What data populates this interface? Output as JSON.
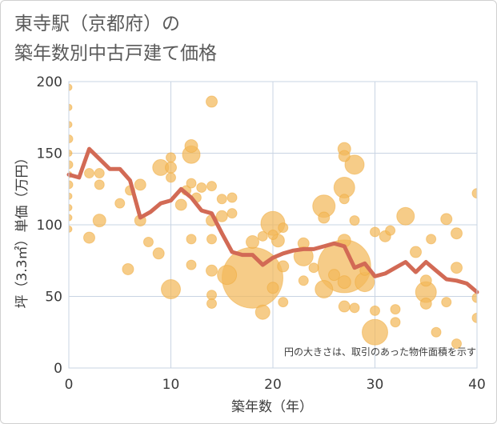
{
  "title": {
    "line1": "東寺駅（京都府）の",
    "line2": "築年数別中古戸建て価格"
  },
  "note": "円の大きさは、取引のあった物件面積を示す",
  "colors": {
    "bubble": "#f3b85a",
    "bubble_stroke": "#efa93a",
    "line": "#d26a55",
    "grid": "#c9d4e3",
    "background": "#ffffff"
  },
  "chart_data": {
    "type": "scatter",
    "xlabel": "築年数（年）",
    "ylabel": "坪（3.3㎡）単価（万円）",
    "xlim": [
      0,
      40
    ],
    "ylim": [
      0,
      200
    ],
    "xticks": [
      "0",
      "10",
      "20",
      "30",
      "40"
    ],
    "yticks": [
      "0",
      "50",
      "100",
      "150",
      "200"
    ],
    "grid": true,
    "average_line": {
      "x": [
        0,
        1,
        2,
        3,
        4,
        5,
        6,
        7,
        8,
        9,
        10,
        11,
        12,
        13,
        14,
        15,
        16,
        17,
        18,
        19,
        20,
        21,
        22,
        23,
        24,
        25,
        26,
        27,
        28,
        29,
        30,
        31,
        32,
        33,
        34,
        35,
        36,
        37,
        38,
        39,
        40
      ],
      "y": [
        135,
        133,
        153,
        146,
        139,
        139,
        131,
        105,
        109,
        115,
        117,
        125,
        119,
        110,
        108,
        94,
        81,
        79,
        79,
        72,
        77,
        80,
        82,
        83,
        83,
        85,
        87,
        85,
        70,
        73,
        64,
        66,
        70,
        74,
        67,
        74,
        68,
        62,
        61,
        59,
        53
      ]
    },
    "bubbles": [
      {
        "x": 0,
        "y": 196,
        "s": 4
      },
      {
        "x": 0,
        "y": 182,
        "s": 4
      },
      {
        "x": 0,
        "y": 170,
        "s": 4
      },
      {
        "x": 0,
        "y": 160,
        "s": 5
      },
      {
        "x": 0,
        "y": 150,
        "s": 4
      },
      {
        "x": 0,
        "y": 142,
        "s": 5
      },
      {
        "x": 0,
        "y": 135,
        "s": 4
      },
      {
        "x": 0,
        "y": 128,
        "s": 5
      },
      {
        "x": 0,
        "y": 120,
        "s": 4
      },
      {
        "x": 0,
        "y": 112,
        "s": 4
      },
      {
        "x": 0,
        "y": 105,
        "s": 4
      },
      {
        "x": 0,
        "y": 97,
        "s": 4
      },
      {
        "x": 2,
        "y": 91,
        "s": 7
      },
      {
        "x": 2,
        "y": 136,
        "s": 6
      },
      {
        "x": 3,
        "y": 128,
        "s": 6
      },
      {
        "x": 3,
        "y": 136,
        "s": 6
      },
      {
        "x": 3,
        "y": 103,
        "s": 8
      },
      {
        "x": 5,
        "y": 115,
        "s": 6
      },
      {
        "x": 5.8,
        "y": 69,
        "s": 7
      },
      {
        "x": 6,
        "y": 124,
        "s": 6
      },
      {
        "x": 7,
        "y": 128,
        "s": 7
      },
      {
        "x": 7,
        "y": 103,
        "s": 7
      },
      {
        "x": 7.8,
        "y": 88,
        "s": 6
      },
      {
        "x": 8.8,
        "y": 80,
        "s": 7
      },
      {
        "x": 9,
        "y": 140,
        "s": 10
      },
      {
        "x": 10,
        "y": 147,
        "s": 6
      },
      {
        "x": 10,
        "y": 140,
        "s": 7
      },
      {
        "x": 10,
        "y": 133,
        "s": 6
      },
      {
        "x": 10,
        "y": 55,
        "s": 12
      },
      {
        "x": 11,
        "y": 114,
        "s": 7
      },
      {
        "x": 11.5,
        "y": 124,
        "s": 6
      },
      {
        "x": 12,
        "y": 155,
        "s": 8
      },
      {
        "x": 12,
        "y": 149,
        "s": 11
      },
      {
        "x": 12,
        "y": 129,
        "s": 6
      },
      {
        "x": 12,
        "y": 90,
        "s": 6
      },
      {
        "x": 12,
        "y": 72,
        "s": 6
      },
      {
        "x": 12.5,
        "y": 119,
        "s": 6
      },
      {
        "x": 13,
        "y": 126,
        "s": 6
      },
      {
        "x": 14,
        "y": 127,
        "s": 6
      },
      {
        "x": 14,
        "y": 186,
        "s": 7
      },
      {
        "x": 14,
        "y": 103,
        "s": 7
      },
      {
        "x": 14,
        "y": 90,
        "s": 6
      },
      {
        "x": 14,
        "y": 68,
        "s": 7
      },
      {
        "x": 14,
        "y": 51,
        "s": 6
      },
      {
        "x": 14,
        "y": 45,
        "s": 6
      },
      {
        "x": 15,
        "y": 118,
        "s": 6
      },
      {
        "x": 15,
        "y": 106,
        "s": 7
      },
      {
        "x": 15.5,
        "y": 65,
        "s": 12
      },
      {
        "x": 16,
        "y": 119,
        "s": 6
      },
      {
        "x": 16,
        "y": 108,
        "s": 6
      },
      {
        "x": 18,
        "y": 63,
        "s": 38
      },
      {
        "x": 18,
        "y": 88,
        "s": 8
      },
      {
        "x": 19,
        "y": 39,
        "s": 9
      },
      {
        "x": 19,
        "y": 92,
        "s": 6
      },
      {
        "x": 20,
        "y": 101,
        "s": 15
      },
      {
        "x": 20,
        "y": 93,
        "s": 6
      },
      {
        "x": 20,
        "y": 56,
        "s": 7
      },
      {
        "x": 20.5,
        "y": 89,
        "s": 8
      },
      {
        "x": 21,
        "y": 98,
        "s": 6
      },
      {
        "x": 21,
        "y": 71,
        "s": 7
      },
      {
        "x": 21,
        "y": 46,
        "s": 6
      },
      {
        "x": 23,
        "y": 87,
        "s": 7
      },
      {
        "x": 23,
        "y": 78,
        "s": 12
      },
      {
        "x": 23,
        "y": 61,
        "s": 6
      },
      {
        "x": 24,
        "y": 70,
        "s": 6
      },
      {
        "x": 25,
        "y": 113,
        "s": 14
      },
      {
        "x": 25,
        "y": 105,
        "s": 7
      },
      {
        "x": 25,
        "y": 55,
        "s": 11
      },
      {
        "x": 26,
        "y": 65,
        "s": 7
      },
      {
        "x": 27,
        "y": 153,
        "s": 8
      },
      {
        "x": 27,
        "y": 148,
        "s": 7
      },
      {
        "x": 27,
        "y": 126,
        "s": 13
      },
      {
        "x": 27,
        "y": 118,
        "s": 6
      },
      {
        "x": 27,
        "y": 89,
        "s": 8
      },
      {
        "x": 27,
        "y": 71,
        "s": 33
      },
      {
        "x": 27,
        "y": 60,
        "s": 8
      },
      {
        "x": 27,
        "y": 43,
        "s": 7
      },
      {
        "x": 28,
        "y": 142,
        "s": 12
      },
      {
        "x": 28,
        "y": 103,
        "s": 6
      },
      {
        "x": 28,
        "y": 42,
        "s": 6
      },
      {
        "x": 29,
        "y": 60,
        "s": 12
      },
      {
        "x": 29,
        "y": 68,
        "s": 6
      },
      {
        "x": 30,
        "y": 25,
        "s": 16
      },
      {
        "x": 30,
        "y": 40,
        "s": 6
      },
      {
        "x": 30,
        "y": 95,
        "s": 6
      },
      {
        "x": 31,
        "y": 92,
        "s": 7
      },
      {
        "x": 31.5,
        "y": 96,
        "s": 6
      },
      {
        "x": 32,
        "y": 41,
        "s": 6
      },
      {
        "x": 32,
        "y": 32,
        "s": 6
      },
      {
        "x": 33,
        "y": 106,
        "s": 11
      },
      {
        "x": 34,
        "y": 81,
        "s": 7
      },
      {
        "x": 35,
        "y": 53,
        "s": 13
      },
      {
        "x": 35,
        "y": 61,
        "s": 7
      },
      {
        "x": 35,
        "y": 45,
        "s": 7
      },
      {
        "x": 35.5,
        "y": 90,
        "s": 6
      },
      {
        "x": 36,
        "y": 25,
        "s": 6
      },
      {
        "x": 37,
        "y": 104,
        "s": 7
      },
      {
        "x": 37,
        "y": 46,
        "s": 6
      },
      {
        "x": 38,
        "y": 94,
        "s": 7
      },
      {
        "x": 38,
        "y": 70,
        "s": 7
      },
      {
        "x": 38,
        "y": 17,
        "s": 6
      },
      {
        "x": 40,
        "y": 122,
        "s": 6
      },
      {
        "x": 40,
        "y": 49,
        "s": 6
      },
      {
        "x": 40,
        "y": 35,
        "s": 6
      }
    ]
  }
}
